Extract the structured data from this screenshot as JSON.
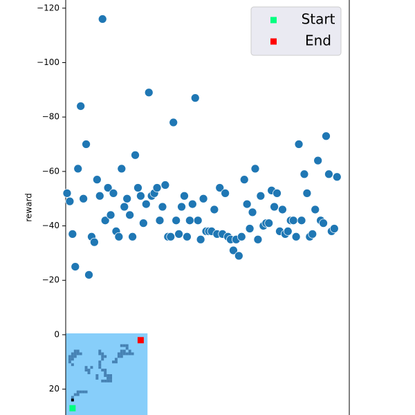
{
  "chart_data": {
    "type": "scatter",
    "ylabel": "reward",
    "x": [
      0,
      1,
      2,
      3,
      4,
      5,
      6,
      7,
      8,
      9,
      10,
      11,
      12,
      13,
      14,
      15,
      16,
      17,
      18,
      19,
      20,
      21,
      22,
      23,
      24,
      25,
      26,
      27,
      28,
      29,
      30,
      31,
      32,
      33,
      34,
      35,
      36,
      37,
      38,
      39,
      40,
      41,
      42,
      43,
      44,
      45,
      46,
      47,
      48,
      49,
      50,
      51,
      52,
      53,
      54,
      55,
      56,
      57,
      58,
      59,
      60,
      61,
      62,
      63,
      64,
      65,
      66,
      67,
      68,
      69,
      70,
      71,
      72,
      73,
      74,
      75,
      76,
      77,
      78,
      79,
      80,
      81,
      82,
      83,
      84,
      85,
      86,
      87,
      88,
      89,
      90,
      91,
      92,
      93,
      94,
      95,
      96,
      97,
      98,
      99
    ],
    "values": [
      -52,
      -49,
      -37,
      -25,
      -61,
      -84,
      -50,
      -70,
      -22,
      -36,
      -34,
      -57,
      -51,
      -116,
      -42,
      -54,
      -44,
      -52,
      -38,
      -36,
      -61,
      -47,
      -50,
      -44,
      -36,
      -66,
      -54,
      -51,
      -41,
      -48,
      -89,
      -51,
      -52,
      -54,
      -42,
      -47,
      -55,
      -36,
      -36,
      -78,
      -42,
      -37,
      -47,
      -51,
      -36,
      -42,
      -48,
      -87,
      -42,
      -35,
      -50,
      -38,
      -38,
      -38,
      -46,
      -37,
      -54,
      -37,
      -52,
      -36,
      -35,
      -31,
      -35,
      -29,
      -36,
      -57,
      -48,
      -39,
      -45,
      -61,
      -35,
      -51,
      -40,
      -41,
      -41,
      -53,
      -47,
      -52,
      -38,
      -46,
      -37,
      -38,
      -42,
      -42,
      -36,
      -70,
      -42,
      -59,
      -52,
      -36,
      -37,
      -46,
      -64,
      -42,
      -41,
      -73,
      -59,
      -38,
      -39,
      -58
    ],
    "color": "#1f77b4",
    "markers": [
      {
        "name": "Start",
        "color": "#00ff7f",
        "x": 2,
        "y": 27
      },
      {
        "name": "End",
        "color": "#ff0000",
        "x": 27,
        "y": 2
      }
    ],
    "xlim": [
      -0.5,
      103.5
    ],
    "ylim": [
      29.5,
      -123
    ],
    "yticks": [
      {
        "value": -120,
        "label": "−120"
      },
      {
        "value": -100,
        "label": "−100"
      },
      {
        "value": -80,
        "label": "−80"
      },
      {
        "value": -60,
        "label": "−60"
      },
      {
        "value": -40,
        "label": "−40"
      },
      {
        "value": -20,
        "label": "−20"
      },
      0,
      20
    ],
    "legend": "upper right"
  }
}
